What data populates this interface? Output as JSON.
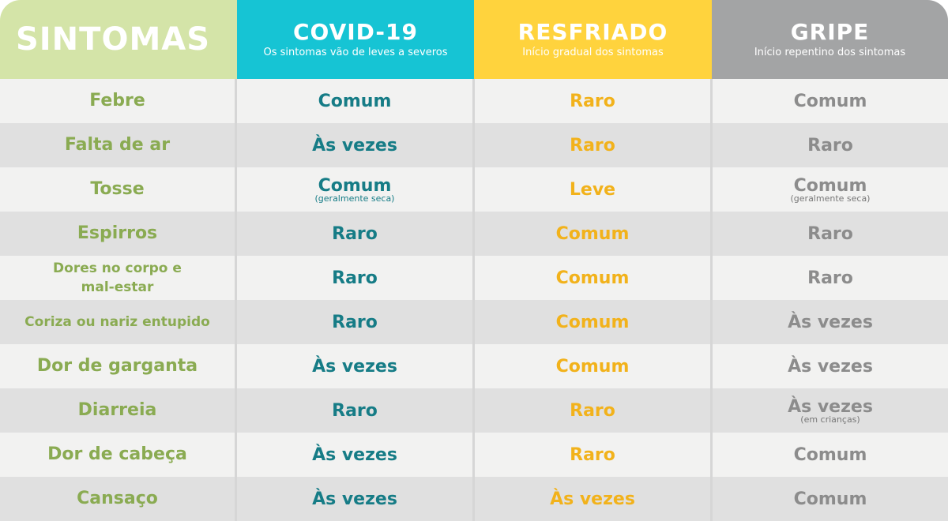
{
  "header": {
    "symptoms_title": "SINTOMAS",
    "covid_title": "COVID-19",
    "covid_sub": "Os sintomas vão de leves a severos",
    "cold_title": "RESFRIADO",
    "cold_sub": "Início gradual dos sintomas",
    "flu_title": "GRIPE",
    "flu_sub": "Início repentino dos sintomas"
  },
  "rows": [
    {
      "symptom": "Febre",
      "covid": "Comum",
      "cold": "Raro",
      "flu": "Comum"
    },
    {
      "symptom": "Falta de ar",
      "covid": "Às vezes",
      "cold": "Raro",
      "flu": "Raro"
    },
    {
      "symptom": "Tosse",
      "covid": "Comum",
      "covid_note": "(geralmente seca)",
      "cold": "Leve",
      "flu": "Comum",
      "flu_note": "(geralmente seca)"
    },
    {
      "symptom": "Espirros",
      "covid": "Raro",
      "cold": "Comum",
      "flu": "Raro"
    },
    {
      "symptom_line1": "Dores no corpo e",
      "symptom_line2": "mal-estar",
      "covid": "Raro",
      "cold": "Comum",
      "flu": "Raro"
    },
    {
      "symptom": "Coriza ou nariz entupido",
      "covid": "Raro",
      "cold": "Comum",
      "flu": "Às vezes"
    },
    {
      "symptom": "Dor de garganta",
      "covid": "Às vezes",
      "cold": "Comum",
      "flu": "Às vezes"
    },
    {
      "symptom": "Diarreia",
      "covid": "Raro",
      "cold": "Raro",
      "flu": "Às vezes",
      "flu_note": "(em crianças)"
    },
    {
      "symptom": "Dor de cabeça",
      "covid": "Às vezes",
      "cold": "Raro",
      "flu": "Comum"
    },
    {
      "symptom": "Cansaço",
      "covid": "Às vezes",
      "cold": "Às vezes",
      "flu": "Comum"
    }
  ],
  "colors": {
    "symptoms_header": "#d4e4a8",
    "covid_header": "#16c4d4",
    "cold_header": "#ffd33d",
    "flu_header": "#a3a4a5",
    "symptom_text": "#8aab52",
    "covid_text": "#167c86",
    "cold_text": "#f2b21b",
    "flu_text": "#8c8c8c"
  }
}
